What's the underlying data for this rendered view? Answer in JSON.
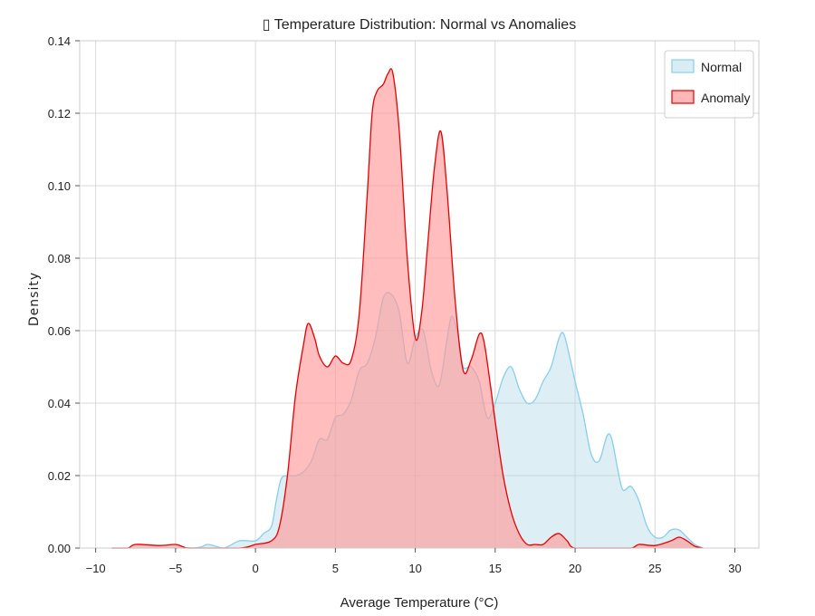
{
  "chart_data": {
    "type": "area",
    "title": "▯ Temperature Distribution: Normal vs Anomalies",
    "xlabel": "Average Temperature (°C)",
    "ylabel": "Density",
    "xlim": [
      -11,
      31.5
    ],
    "ylim": [
      0,
      0.14
    ],
    "xticks": [
      -10,
      -5,
      0,
      5,
      10,
      15,
      20,
      25,
      30
    ],
    "xtick_labels": [
      "−10",
      "−5",
      "0",
      "5",
      "10",
      "15",
      "20",
      "25",
      "30"
    ],
    "yticks": [
      0,
      0.02,
      0.04,
      0.06,
      0.08,
      0.1,
      0.12,
      0.14
    ],
    "ytick_labels": [
      "0.00",
      "0.02",
      "0.04",
      "0.06",
      "0.08",
      "0.10",
      "0.12",
      "0.14"
    ],
    "grid": true,
    "legend_position": "top-right",
    "series": [
      {
        "name": "Normal",
        "fill": "#add8e6",
        "stroke": "#87ceeb",
        "points": [
          [
            -9.0,
            0.0
          ],
          [
            -4.0,
            0.0
          ],
          [
            -3.0,
            0.001
          ],
          [
            -2.0,
            0.0
          ],
          [
            -1.0,
            0.002
          ],
          [
            0.0,
            0.002
          ],
          [
            0.5,
            0.004
          ],
          [
            1.0,
            0.006
          ],
          [
            1.3,
            0.013
          ],
          [
            1.6,
            0.019
          ],
          [
            2.0,
            0.02
          ],
          [
            2.5,
            0.02
          ],
          [
            3.0,
            0.021
          ],
          [
            3.5,
            0.024
          ],
          [
            4.0,
            0.03
          ],
          [
            4.5,
            0.03
          ],
          [
            5.0,
            0.036
          ],
          [
            5.5,
            0.037
          ],
          [
            6.0,
            0.041
          ],
          [
            6.5,
            0.049
          ],
          [
            7.0,
            0.051
          ],
          [
            7.5,
            0.058
          ],
          [
            8.0,
            0.069
          ],
          [
            8.5,
            0.07
          ],
          [
            9.0,
            0.065
          ],
          [
            9.5,
            0.051
          ],
          [
            10.0,
            0.058
          ],
          [
            10.5,
            0.06
          ],
          [
            11.0,
            0.049
          ],
          [
            11.5,
            0.045
          ],
          [
            12.0,
            0.058
          ],
          [
            12.3,
            0.064
          ],
          [
            12.7,
            0.058
          ],
          [
            13.0,
            0.05
          ],
          [
            13.5,
            0.05
          ],
          [
            14.0,
            0.046
          ],
          [
            14.5,
            0.036
          ],
          [
            15.0,
            0.04
          ],
          [
            15.5,
            0.047
          ],
          [
            16.0,
            0.05
          ],
          [
            16.5,
            0.044
          ],
          [
            17.0,
            0.04
          ],
          [
            17.5,
            0.041
          ],
          [
            18.0,
            0.046
          ],
          [
            18.5,
            0.05
          ],
          [
            19.0,
            0.058
          ],
          [
            19.3,
            0.059
          ],
          [
            19.7,
            0.052
          ],
          [
            20.0,
            0.046
          ],
          [
            20.5,
            0.037
          ],
          [
            21.0,
            0.026
          ],
          [
            21.5,
            0.024
          ],
          [
            22.0,
            0.031
          ],
          [
            22.3,
            0.03
          ],
          [
            22.7,
            0.021
          ],
          [
            23.0,
            0.016
          ],
          [
            23.5,
            0.017
          ],
          [
            24.0,
            0.013
          ],
          [
            24.5,
            0.006
          ],
          [
            25.0,
            0.003
          ],
          [
            25.5,
            0.003
          ],
          [
            26.0,
            0.005
          ],
          [
            26.5,
            0.005
          ],
          [
            27.0,
            0.003
          ],
          [
            27.5,
            0.001
          ],
          [
            28.0,
            0.0
          ]
        ]
      },
      {
        "name": "Anomaly",
        "fill": "#ff9999",
        "stroke": "#e60000",
        "points": [
          [
            -9.0,
            0.0
          ],
          [
            -8.0,
            0.0
          ],
          [
            -7.5,
            0.001
          ],
          [
            -6.0,
            0.0007
          ],
          [
            -5.0,
            0.001
          ],
          [
            -4.5,
            0.0003
          ],
          [
            -4.0,
            0.0
          ],
          [
            -1.0,
            0.0
          ],
          [
            0.0,
            0.001
          ],
          [
            1.0,
            0.002
          ],
          [
            1.5,
            0.006
          ],
          [
            2.0,
            0.02
          ],
          [
            2.5,
            0.042
          ],
          [
            3.0,
            0.056
          ],
          [
            3.3,
            0.062
          ],
          [
            3.7,
            0.058
          ],
          [
            4.0,
            0.053
          ],
          [
            4.5,
            0.05
          ],
          [
            5.0,
            0.053
          ],
          [
            5.5,
            0.051
          ],
          [
            6.0,
            0.052
          ],
          [
            6.5,
            0.065
          ],
          [
            7.0,
            0.098
          ],
          [
            7.3,
            0.12
          ],
          [
            7.6,
            0.126
          ],
          [
            8.0,
            0.128
          ],
          [
            8.3,
            0.131
          ],
          [
            8.6,
            0.131
          ],
          [
            9.0,
            0.115
          ],
          [
            9.5,
            0.08
          ],
          [
            10.0,
            0.058
          ],
          [
            10.4,
            0.065
          ],
          [
            10.8,
            0.085
          ],
          [
            11.2,
            0.105
          ],
          [
            11.6,
            0.115
          ],
          [
            12.0,
            0.098
          ],
          [
            12.5,
            0.068
          ],
          [
            13.0,
            0.049
          ],
          [
            13.5,
            0.052
          ],
          [
            14.0,
            0.059
          ],
          [
            14.3,
            0.057
          ],
          [
            14.7,
            0.045
          ],
          [
            15.0,
            0.035
          ],
          [
            15.5,
            0.02
          ],
          [
            16.0,
            0.01
          ],
          [
            16.5,
            0.004
          ],
          [
            17.0,
            0.001
          ],
          [
            17.5,
            0.001
          ],
          [
            18.0,
            0.001
          ],
          [
            18.5,
            0.003
          ],
          [
            19.0,
            0.004
          ],
          [
            19.5,
            0.002
          ],
          [
            20.0,
            0.0
          ],
          [
            22.0,
            0.0
          ],
          [
            23.5,
            0.0
          ],
          [
            24.0,
            0.001
          ],
          [
            25.0,
            0.0007
          ],
          [
            26.0,
            0.002
          ],
          [
            26.5,
            0.003
          ],
          [
            27.0,
            0.002
          ],
          [
            27.5,
            0.0005
          ],
          [
            28.0,
            0.0
          ]
        ]
      }
    ]
  }
}
